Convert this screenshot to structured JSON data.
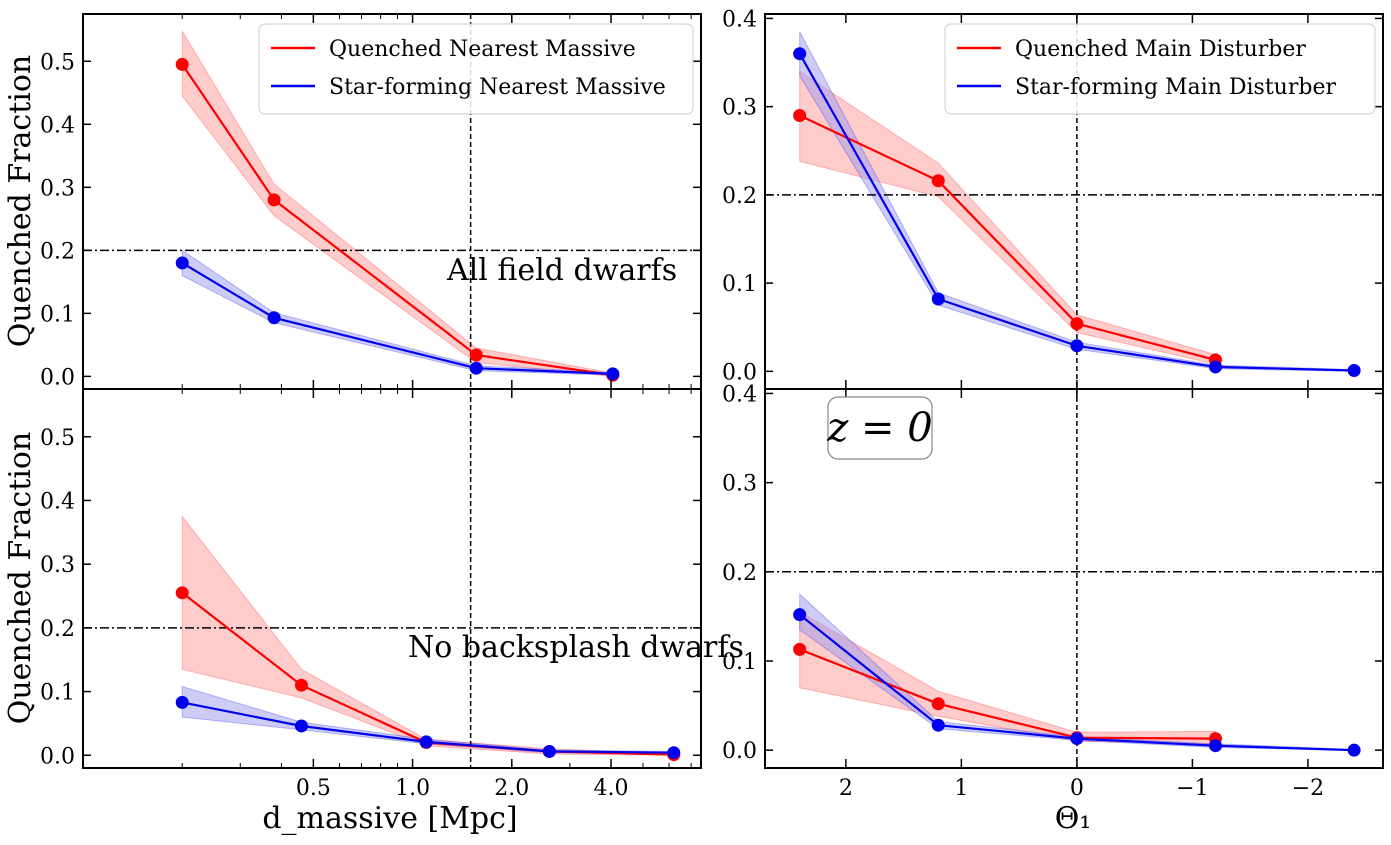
{
  "figure": {
    "colors": {
      "quenched": "#ff0000",
      "star_forming": "#0000ee",
      "quenched_band": "#ff9999",
      "star_forming_band": "#9999ee"
    },
    "annotations": {
      "top_left": "All field dwarfs",
      "bottom_left": "No backsplash dwarfs",
      "bottom_right_box": "z = 0"
    },
    "xlabels": {
      "left": "d_massive [Mpc]",
      "right": "Θ₁"
    },
    "ylabels": {
      "top_left": "Quenched Fraction",
      "bottom_left": "Quenched Fraction"
    }
  },
  "chart_data": [
    {
      "panel": "top-left",
      "type": "line",
      "xscale": "log",
      "xlim": [
        0.1,
        7.5
      ],
      "ylim": [
        -0.02,
        0.575
      ],
      "xticks": [
        {
          "v": 0.5,
          "label": "0.5"
        },
        {
          "v": 1.0,
          "label": "1.0"
        },
        {
          "v": 2.0,
          "label": "2.0"
        },
        {
          "v": 4.0,
          "label": "4.0"
        }
      ],
      "yticks": [
        {
          "v": 0.0,
          "label": "0.0"
        },
        {
          "v": 0.1,
          "label": "0.1"
        },
        {
          "v": 0.2,
          "label": "0.2"
        },
        {
          "v": 0.3,
          "label": "0.3"
        },
        {
          "v": 0.4,
          "label": "0.4"
        },
        {
          "v": 0.5,
          "label": "0.5"
        }
      ],
      "hline": 0.2,
      "vline": 1.5,
      "legend": "top-right",
      "series": [
        {
          "name": "Quenched Nearest Massive",
          "color": "#ff0000",
          "x": [
            0.2,
            0.38,
            1.56,
            4.05
          ],
          "y": [
            0.495,
            0.28,
            0.034,
            0.002
          ],
          "low": [
            0.445,
            0.255,
            0.022,
            0.0
          ],
          "high": [
            0.548,
            0.305,
            0.045,
            0.005
          ]
        },
        {
          "name": "Star-forming Nearest Massive",
          "color": "#0000ee",
          "x": [
            0.2,
            0.38,
            1.56,
            4.05
          ],
          "y": [
            0.18,
            0.093,
            0.013,
            0.004
          ],
          "low": [
            0.16,
            0.085,
            0.009,
            0.002
          ],
          "high": [
            0.2,
            0.101,
            0.017,
            0.006
          ]
        }
      ]
    },
    {
      "panel": "bottom-left",
      "type": "line",
      "xscale": "log",
      "xlim": [
        0.1,
        7.5
      ],
      "ylim": [
        -0.02,
        0.575
      ],
      "xticks": [
        {
          "v": 0.5,
          "label": "0.5"
        },
        {
          "v": 1.0,
          "label": "1.0"
        },
        {
          "v": 2.0,
          "label": "2.0"
        },
        {
          "v": 4.0,
          "label": "4.0"
        }
      ],
      "yticks": [
        {
          "v": 0.0,
          "label": "0.0"
        },
        {
          "v": 0.1,
          "label": "0.1"
        },
        {
          "v": 0.2,
          "label": "0.2"
        },
        {
          "v": 0.3,
          "label": "0.3"
        },
        {
          "v": 0.4,
          "label": "0.4"
        },
        {
          "v": 0.5,
          "label": "0.5"
        }
      ],
      "hline": 0.2,
      "vline": 1.5,
      "xlabel": "d_massive [Mpc]",
      "series": [
        {
          "name": "",
          "color": "#ff0000",
          "x": [
            0.2,
            0.46,
            1.1,
            2.6,
            6.2
          ],
          "y": [
            0.255,
            0.11,
            0.02,
            0.006,
            0.001
          ],
          "low": [
            0.135,
            0.09,
            0.015,
            0.002,
            0.0
          ],
          "high": [
            0.375,
            0.135,
            0.025,
            0.01,
            0.003
          ]
        },
        {
          "name": "",
          "color": "#0000ee",
          "x": [
            0.2,
            0.46,
            1.1,
            2.6,
            6.2
          ],
          "y": [
            0.083,
            0.046,
            0.021,
            0.006,
            0.004
          ],
          "low": [
            0.06,
            0.04,
            0.018,
            0.004,
            0.002
          ],
          "high": [
            0.108,
            0.052,
            0.025,
            0.008,
            0.006
          ]
        }
      ]
    },
    {
      "panel": "top-right",
      "type": "line",
      "xlim": [
        2.7,
        -2.65
      ],
      "ylim": [
        -0.02,
        0.405
      ],
      "xticks": [
        {
          "v": 2,
          "label": "2"
        },
        {
          "v": 1,
          "label": "1"
        },
        {
          "v": 0,
          "label": "0"
        },
        {
          "v": -1,
          "label": "−1"
        },
        {
          "v": -2,
          "label": "−2"
        }
      ],
      "yticks": [
        {
          "v": 0.0,
          "label": "0.0"
        },
        {
          "v": 0.1,
          "label": "0.1"
        },
        {
          "v": 0.2,
          "label": "0.2"
        },
        {
          "v": 0.3,
          "label": "0.3"
        },
        {
          "v": 0.4,
          "label": "0.4"
        }
      ],
      "hline": 0.2,
      "vline": 0.0,
      "legend": "top-right",
      "series": [
        {
          "name": "Quenched Main Disturber",
          "color": "#ff0000",
          "x": [
            2.4,
            1.2,
            0.0,
            -1.2
          ],
          "y": [
            0.29,
            0.216,
            0.054,
            0.013
          ],
          "low": [
            0.238,
            0.198,
            0.044,
            0.008
          ],
          "high": [
            0.34,
            0.236,
            0.064,
            0.019
          ]
        },
        {
          "name": "Star-forming Main Disturber",
          "color": "#0000ee",
          "x": [
            2.4,
            1.2,
            0.0,
            -1.2,
            -2.4
          ],
          "y": [
            0.36,
            0.082,
            0.029,
            0.005,
            0.001
          ],
          "low": [
            0.335,
            0.075,
            0.025,
            0.003,
            0.0
          ],
          "high": [
            0.385,
            0.089,
            0.033,
            0.007,
            0.002
          ]
        }
      ]
    },
    {
      "panel": "bottom-right",
      "type": "line",
      "xlim": [
        2.7,
        -2.65
      ],
      "ylim": [
        -0.02,
        0.405
      ],
      "xticks": [
        {
          "v": 2,
          "label": "2"
        },
        {
          "v": 1,
          "label": "1"
        },
        {
          "v": 0,
          "label": "0"
        },
        {
          "v": -1,
          "label": "−1"
        },
        {
          "v": -2,
          "label": "−2"
        }
      ],
      "yticks": [
        {
          "v": 0.0,
          "label": "0.0"
        },
        {
          "v": 0.1,
          "label": "0.1"
        },
        {
          "v": 0.2,
          "label": "0.2"
        },
        {
          "v": 0.3,
          "label": "0.3"
        },
        {
          "v": 0.4,
          "label": "0.4"
        }
      ],
      "hline": 0.2,
      "vline": 0.0,
      "xlabel": "Θ₁",
      "series": [
        {
          "name": "",
          "color": "#ff0000",
          "x": [
            2.4,
            1.2,
            0.0,
            -1.2
          ],
          "y": [
            0.113,
            0.052,
            0.014,
            0.013
          ],
          "low": [
            0.07,
            0.038,
            0.01,
            0.007
          ],
          "high": [
            0.155,
            0.066,
            0.02,
            0.021
          ]
        },
        {
          "name": "",
          "color": "#0000ee",
          "x": [
            2.4,
            1.2,
            0.0,
            -1.2,
            -2.4
          ],
          "y": [
            0.152,
            0.028,
            0.013,
            0.005,
            0.0
          ],
          "low": [
            0.135,
            0.024,
            0.011,
            0.003,
            0.0
          ],
          "high": [
            0.175,
            0.032,
            0.015,
            0.007,
            0.001
          ]
        }
      ]
    }
  ]
}
